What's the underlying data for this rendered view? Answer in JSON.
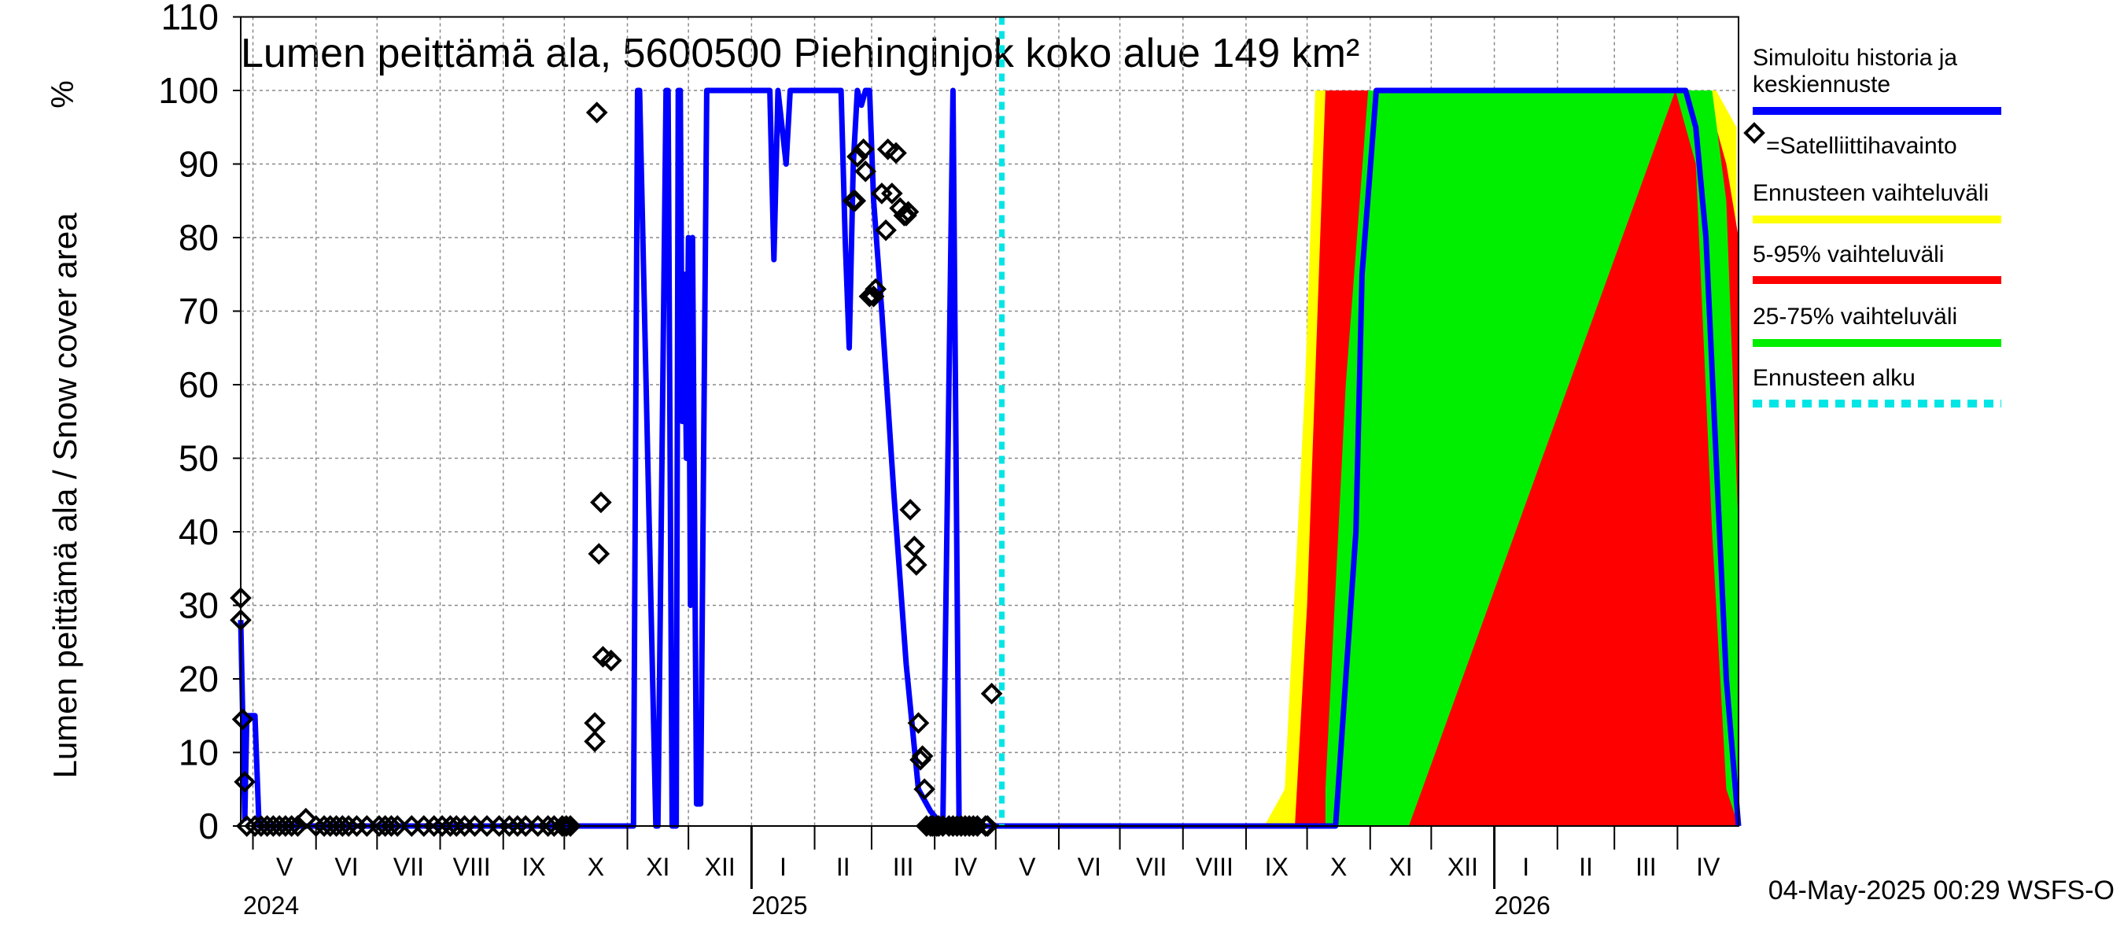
{
  "chart_data": {
    "type": "line",
    "title": "Lumen peittämä ala, 5600500 Piehinginjok koko alue 149 km²",
    "ylabel": "Lumen peittämä ala / Snow cover area",
    "yunit": "%",
    "ylim": [
      0,
      110
    ],
    "yticks": [
      0,
      10,
      20,
      30,
      40,
      50,
      60,
      70,
      80,
      90,
      100,
      110
    ],
    "xlim": [
      "2024-04-25",
      "2026-05-01"
    ],
    "grid": true,
    "legend_placement": "right",
    "months": [
      {
        "label": "V",
        "start": "2024-05-01"
      },
      {
        "label": "VI",
        "start": "2024-06-01"
      },
      {
        "label": "VII",
        "start": "2024-07-01"
      },
      {
        "label": "VIII",
        "start": "2024-08-01"
      },
      {
        "label": "IX",
        "start": "2024-09-01"
      },
      {
        "label": "X",
        "start": "2024-10-01"
      },
      {
        "label": "XI",
        "start": "2024-11-01"
      },
      {
        "label": "XII",
        "start": "2024-12-01"
      },
      {
        "label": "I",
        "start": "2025-01-01"
      },
      {
        "label": "II",
        "start": "2025-02-01"
      },
      {
        "label": "III",
        "start": "2025-03-01"
      },
      {
        "label": "IV",
        "start": "2025-04-01"
      },
      {
        "label": "V",
        "start": "2025-05-01"
      },
      {
        "label": "VI",
        "start": "2025-06-01"
      },
      {
        "label": "VII",
        "start": "2025-07-01"
      },
      {
        "label": "VIII",
        "start": "2025-08-01"
      },
      {
        "label": "IX",
        "start": "2025-09-01"
      },
      {
        "label": "X",
        "start": "2025-10-01"
      },
      {
        "label": "XI",
        "start": "2025-11-01"
      },
      {
        "label": "XII",
        "start": "2025-12-01"
      },
      {
        "label": "I",
        "start": "2026-01-01"
      },
      {
        "label": "II",
        "start": "2026-02-01"
      },
      {
        "label": "III",
        "start": "2026-03-01"
      },
      {
        "label": "IV",
        "start": "2026-04-01"
      }
    ],
    "years": [
      {
        "label": "2024",
        "at": "2024-04-25"
      },
      {
        "label": "2025",
        "at": "2025-01-01"
      },
      {
        "label": "2026",
        "at": "2026-01-01"
      }
    ],
    "forecast_start": "2025-05-04",
    "legend": [
      {
        "label": "Simuloitu historia ja keskiennuste",
        "color": "#0000ff",
        "style": "line"
      },
      {
        "label": "=Satelliittihavainto",
        "color": "#000000",
        "style": "marker"
      },
      {
        "label": "Ennusteen vaihteluväli",
        "color": "#ffff00",
        "style": "line"
      },
      {
        "label": "5-95% vaihteluväli",
        "color": "#ff0000",
        "style": "line"
      },
      {
        "label": "25-75% vaihteluväli",
        "color": "#00ee00",
        "style": "line"
      },
      {
        "label": "Ennusteen alku",
        "color": "#00e5e5",
        "style": "dashed"
      }
    ],
    "series": [
      {
        "name": "Simuloitu historia ja keskiennuste",
        "color": "#0000ff",
        "x": [
          "2024-04-25",
          "2024-04-27",
          "2024-04-28",
          "2024-05-02",
          "2024-05-04",
          "2024-05-06",
          "2024-05-07",
          "2024-10-26",
          "2024-10-28",
          "2024-10-30",
          "2024-11-04",
          "2024-11-06",
          "2024-11-07",
          "2024-11-15",
          "2024-11-16",
          "2024-11-20",
          "2024-11-21",
          "2024-11-23",
          "2024-11-25",
          "2024-11-26",
          "2024-11-27",
          "2024-11-28",
          "2024-11-29",
          "2024-11-30",
          "2024-12-01",
          "2024-12-02",
          "2024-12-03",
          "2024-12-05",
          "2024-12-07",
          "2024-12-10",
          "2024-12-13",
          "2024-12-16",
          "2024-12-19",
          "2024-12-22",
          "2024-12-24",
          "2025-01-10",
          "2025-01-12",
          "2025-01-14",
          "2025-01-18",
          "2025-01-20",
          "2025-01-22",
          "2025-01-24",
          "2025-02-14",
          "2025-02-16",
          "2025-02-18",
          "2025-02-20",
          "2025-02-22",
          "2025-02-24",
          "2025-02-26",
          "2025-02-28",
          "2025-03-02",
          "2025-03-06",
          "2025-03-12",
          "2025-03-18",
          "2025-03-24",
          "2025-03-30",
          "2025-04-05",
          "2025-04-10",
          "2025-04-13",
          "2025-04-15",
          "2025-04-17",
          "2025-04-19",
          "2025-04-20",
          "2025-04-22",
          "2025-04-24",
          "2025-04-26",
          "2025-04-28",
          "2025-05-02",
          "2025-10-15",
          "2025-10-25",
          "2025-10-28",
          "2025-11-04",
          "2025-11-06",
          "2025-11-10",
          "2026-04-05",
          "2026-04-10",
          "2026-04-15",
          "2026-04-20",
          "2026-04-25",
          "2026-05-01"
        ],
        "y": [
          28,
          1,
          15,
          15,
          0,
          0,
          0,
          0,
          0,
          0,
          0,
          100,
          100,
          0,
          0,
          100,
          100,
          0,
          0,
          100,
          100,
          55,
          75,
          50,
          80,
          30,
          80,
          3,
          3,
          100,
          100,
          100,
          100,
          100,
          100,
          100,
          77,
          100,
          90,
          100,
          100,
          100,
          100,
          80,
          65,
          90,
          100,
          98,
          100,
          100,
          85,
          70,
          45,
          22,
          5,
          2,
          0,
          100,
          0,
          0,
          0,
          0,
          0,
          0,
          0,
          0,
          0,
          0,
          0,
          40,
          75,
          100,
          100,
          100,
          100,
          95,
          80,
          50,
          20,
          0
        ]
      },
      {
        "name": "Ennusteen vaihteluväli",
        "color": "#ffff00",
        "x": [
          "2025-09-10",
          "2025-09-20",
          "2025-09-30",
          "2025-10-05",
          "2025-10-10",
          "2026-03-20",
          "2026-03-31",
          "2026-04-10",
          "2026-04-20",
          "2026-04-30"
        ],
        "lower": [
          0,
          0,
          0,
          0,
          0,
          0,
          0,
          0,
          0,
          0
        ],
        "upper": [
          0,
          5,
          60,
          100,
          100,
          100,
          100,
          100,
          100,
          95
        ]
      },
      {
        "name": "5-95% vaihteluväli",
        "color": "#ff0000",
        "x": [
          "2025-09-25",
          "2025-10-01",
          "2025-10-10",
          "2025-10-20",
          "2025-10-31",
          "2026-03-20",
          "2026-03-31",
          "2026-04-05",
          "2026-04-15",
          "2026-04-25",
          "2026-05-01"
        ],
        "lower": [
          0,
          0,
          0,
          0,
          0,
          0,
          0,
          0,
          0,
          0,
          0
        ],
        "upper": [
          0,
          30,
          100,
          100,
          100,
          100,
          100,
          100,
          100,
          90,
          80
        ]
      },
      {
        "name": "25-75% vaihteluväli",
        "color": "#00ee00",
        "x": [
          "2025-10-10",
          "2025-10-20",
          "2025-10-31",
          "2025-11-10",
          "2025-11-20",
          "2026-03-31",
          "2026-04-10",
          "2026-04-18",
          "2026-04-25",
          "2026-05-01"
        ],
        "lower": [
          0,
          0,
          0,
          0,
          0,
          100,
          90,
          40,
          5,
          0
        ],
        "upper": [
          5,
          60,
          100,
          100,
          100,
          100,
          100,
          100,
          85,
          40
        ]
      }
    ],
    "observations": {
      "name": "Satelliittihavainto",
      "x": [
        "2024-04-25",
        "2024-04-25",
        "2024-04-26",
        "2024-04-27",
        "2024-04-28",
        "2024-05-02",
        "2024-05-05",
        "2024-05-08",
        "2024-05-11",
        "2024-05-14",
        "2024-05-17",
        "2024-05-20",
        "2024-05-23",
        "2024-05-27",
        "2024-06-01",
        "2024-06-05",
        "2024-06-08",
        "2024-06-11",
        "2024-06-14",
        "2024-06-17",
        "2024-06-21",
        "2024-06-26",
        "2024-07-02",
        "2024-07-05",
        "2024-07-08",
        "2024-07-11",
        "2024-07-18",
        "2024-07-24",
        "2024-07-29",
        "2024-08-02",
        "2024-08-06",
        "2024-08-09",
        "2024-08-13",
        "2024-08-18",
        "2024-08-24",
        "2024-08-30",
        "2024-09-04",
        "2024-09-08",
        "2024-09-12",
        "2024-09-18",
        "2024-09-23",
        "2024-09-26",
        "2024-09-30",
        "2024-10-02",
        "2024-10-04",
        "2024-10-16",
        "2024-10-16",
        "2024-10-17",
        "2024-10-18",
        "2024-10-19",
        "2024-10-20",
        "2024-10-24",
        "2025-02-20",
        "2025-02-21",
        "2025-02-22",
        "2025-02-25",
        "2025-02-26",
        "2025-02-28",
        "2025-03-02",
        "2025-03-03",
        "2025-03-06",
        "2025-03-08",
        "2025-03-09",
        "2025-03-11",
        "2025-03-13",
        "2025-03-15",
        "2025-03-17",
        "2025-03-18",
        "2025-03-19",
        "2025-03-20",
        "2025-03-22",
        "2025-03-23",
        "2025-03-24",
        "2025-03-25",
        "2025-03-26",
        "2025-03-27",
        "2025-03-28",
        "2025-03-30",
        "2025-03-31",
        "2025-04-02",
        "2025-04-03",
        "2025-04-05",
        "2025-04-08",
        "2025-04-10",
        "2025-04-12",
        "2025-04-14",
        "2025-04-16",
        "2025-04-18",
        "2025-04-20",
        "2025-04-22",
        "2025-04-26",
        "2025-04-27",
        "2025-04-29"
      ],
      "y": [
        28,
        31,
        14.5,
        6,
        0,
        0,
        0,
        0,
        0,
        0,
        0,
        0,
        0,
        1,
        0,
        0,
        0,
        0,
        0,
        0,
        0,
        0,
        0,
        0,
        0,
        0,
        0,
        0,
        0,
        0,
        0,
        0,
        0,
        0,
        0,
        0,
        0,
        0,
        0,
        0,
        0,
        0,
        0,
        0,
        0,
        14,
        11.5,
        97,
        37,
        44,
        23,
        22.5,
        85,
        85,
        91,
        92,
        89,
        72,
        72,
        73,
        86,
        81,
        92,
        86,
        91.5,
        84,
        83,
        83,
        83.5,
        43,
        38,
        35.5,
        14,
        9,
        9.5,
        5,
        0,
        0,
        0,
        0,
        0,
        0,
        0,
        0,
        0,
        0,
        0,
        0,
        0,
        0,
        0,
        0,
        18
      ]
    }
  },
  "footer": {
    "timestamp": "04-May-2025 00:29 WSFS-O"
  }
}
